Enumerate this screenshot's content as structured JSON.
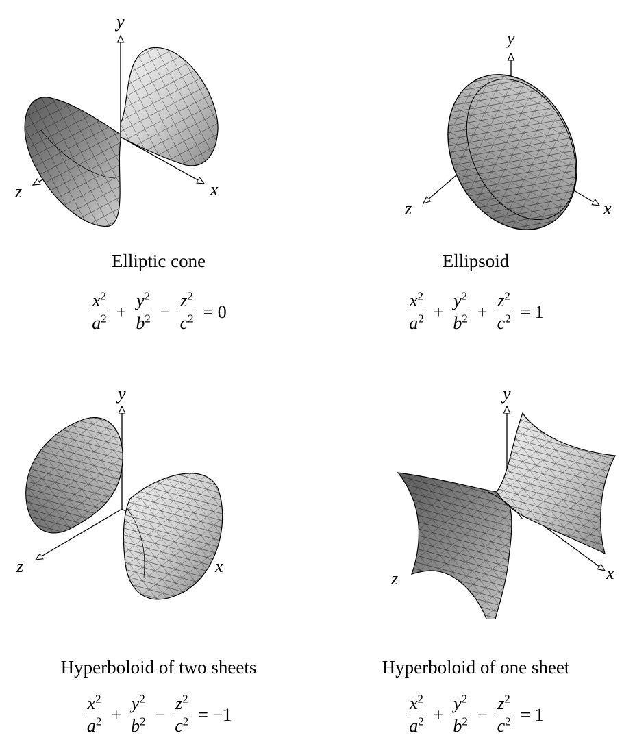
{
  "panels": [
    {
      "caption": "Elliptic cone",
      "axes": {
        "x": "x",
        "y": "y",
        "z": "z"
      },
      "equation": {
        "t1": {
          "num": "x",
          "den": "a"
        },
        "op1": "+",
        "t2": {
          "num": "y",
          "den": "b"
        },
        "op2": "−",
        "t3": {
          "num": "z",
          "den": "c"
        },
        "exp": "2",
        "rhs": "= 0"
      }
    },
    {
      "caption": "Ellipsoid",
      "axes": {
        "x": "x",
        "y": "y",
        "z": "z"
      },
      "equation": {
        "t1": {
          "num": "x",
          "den": "a"
        },
        "op1": "+",
        "t2": {
          "num": "y",
          "den": "b"
        },
        "op2": "+",
        "t3": {
          "num": "z",
          "den": "c"
        },
        "exp": "2",
        "rhs": "= 1"
      }
    },
    {
      "caption": "Hyperboloid of two sheets",
      "axes": {
        "x": "x",
        "y": "y",
        "z": "z"
      },
      "equation": {
        "t1": {
          "num": "x",
          "den": "a"
        },
        "op1": "+",
        "t2": {
          "num": "y",
          "den": "b"
        },
        "op2": "−",
        "t3": {
          "num": "z",
          "den": "c"
        },
        "exp": "2",
        "rhs": "= −1"
      }
    },
    {
      "caption": "Hyperboloid of one sheet",
      "axes": {
        "x": "x",
        "y": "y",
        "z": "z"
      },
      "equation": {
        "t1": {
          "num": "x",
          "den": "a"
        },
        "op1": "+",
        "t2": {
          "num": "y",
          "den": "b"
        },
        "op2": "−",
        "t3": {
          "num": "z",
          "den": "c"
        },
        "exp": "2",
        "rhs": "= 1"
      }
    }
  ]
}
